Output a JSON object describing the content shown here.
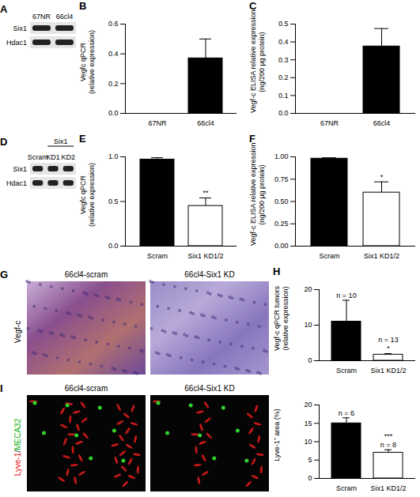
{
  "chart_data": [
    {
      "panel": "B",
      "type": "bar",
      "ylabel": "Vegfc qPCR\n(relative expression)",
      "categories": [
        "67NR",
        "66cl4"
      ],
      "values": [
        0,
        0.37
      ],
      "errors": [
        0,
        0.13
      ],
      "colors": [
        "#000000",
        "#000000"
      ],
      "ylim": [
        0,
        0.6
      ],
      "yticks": [
        {
          "value": 0,
          "label": "0.0"
        },
        {
          "value": 0.2,
          "label": "0.2"
        },
        {
          "value": 0.4,
          "label": "0.4"
        },
        {
          "value": 0.6,
          "label": "0.6"
        }
      ],
      "annotations": []
    },
    {
      "panel": "C",
      "type": "bar",
      "ylabel": "Vegf-c ELISA relative expression\n(ng/200 µg protein)",
      "categories": [
        "67NR",
        "66cl4"
      ],
      "values": [
        0,
        0.375
      ],
      "errors": [
        0,
        0.1
      ],
      "colors": [
        "#000000",
        "#000000"
      ],
      "ylim": [
        0,
        0.5
      ],
      "yticks": [
        {
          "value": 0,
          "label": "0.0"
        },
        {
          "value": 0.1,
          "label": "0.1"
        },
        {
          "value": 0.2,
          "label": "0.2"
        },
        {
          "value": 0.3,
          "label": "0.3"
        },
        {
          "value": 0.4,
          "label": "0.4"
        },
        {
          "value": 0.5,
          "label": "0.5"
        }
      ],
      "annotations": []
    },
    {
      "panel": "E",
      "type": "bar",
      "ylabel": "Vegfc qPCR\n(relative expression)",
      "categories": [
        "Scram",
        "Six1 KD1/2"
      ],
      "values": [
        0.97,
        0.45
      ],
      "errors": [
        0.02,
        0.09
      ],
      "colors": [
        "#000000",
        "#ffffff"
      ],
      "ylim": [
        0,
        1.0
      ],
      "yticks": [
        {
          "value": 0,
          "label": "0.0"
        },
        {
          "value": 0.5,
          "label": "0.5"
        },
        {
          "value": 1.0,
          "label": "1.0"
        }
      ],
      "annotations": [
        {
          "x": "Six1 KD1/2",
          "text": "**"
        }
      ]
    },
    {
      "panel": "F",
      "type": "bar",
      "ylabel": "Vegf-c ELISA relative expression\n(ng/200 µg protein)",
      "categories": [
        "Scram",
        "Six1 KD1/2"
      ],
      "values": [
        0.98,
        0.6
      ],
      "errors": [
        0.01,
        0.12
      ],
      "colors": [
        "#000000",
        "#ffffff"
      ],
      "ylim": [
        0,
        1.0
      ],
      "yticks": [
        {
          "value": 0,
          "label": "0.00"
        },
        {
          "value": 0.25,
          "label": "0.25"
        },
        {
          "value": 0.5,
          "label": "0.50"
        },
        {
          "value": 0.75,
          "label": "0.75"
        },
        {
          "value": 1.0,
          "label": "1.00"
        }
      ],
      "annotations": [
        {
          "x": "Six1 KD1/2",
          "text": "*"
        }
      ]
    },
    {
      "panel": "H",
      "type": "bar",
      "ylabel": "Vegf-c qPCR tumors\n(relative expression)",
      "categories": [
        "Scram",
        "Six1 KD1/2"
      ],
      "values": [
        11,
        1.7
      ],
      "errors": [
        6,
        0.3
      ],
      "colors": [
        "#000000",
        "#ffffff"
      ],
      "ylim": [
        0,
        20
      ],
      "yticks": [
        0,
        10,
        20
      ],
      "annotations": [
        {
          "x": "Scram",
          "text": "n = 10"
        },
        {
          "x": "Six1 KD1/2",
          "text": "*"
        },
        {
          "x": "Six1 KD1/2",
          "text": "n = 13"
        }
      ]
    },
    {
      "type": "bar",
      "ylabel": "Lyve-1⁺ area (%)",
      "categories": [
        "Scram",
        "Six1 KD1/2"
      ],
      "values": [
        15,
        7
      ],
      "errors": [
        1.5,
        0.8
      ],
      "colors": [
        "#000000",
        "#ffffff"
      ],
      "ylim": [
        0,
        20
      ],
      "yticks": [
        0,
        5,
        10,
        15,
        20
      ],
      "annotations": [
        {
          "x": "Scram",
          "text": "n = 6"
        },
        {
          "x": "Six1 KD1/2",
          "text": "n = 8"
        },
        {
          "x": "Six1 KD1/2",
          "text": "***"
        }
      ]
    }
  ],
  "panels": [
    {
      "panel": "A",
      "type": "western_blot",
      "lanes": [
        "67NR",
        "66cl4"
      ],
      "rows": [
        "Six1",
        "Hdac1"
      ]
    },
    {
      "panel": "D",
      "type": "western_blot",
      "lanes": [
        "Scram",
        "KD1",
        "KD2"
      ],
      "lane_group": {
        "label": "Six1",
        "lanes": [
          "KD1",
          "KD2"
        ]
      },
      "rows": [
        "Six1",
        "Hdac1"
      ]
    },
    {
      "panel": "G",
      "type": "micrograph_pair",
      "images": [
        "66cl4-scram",
        "66cl4-Six1 KD"
      ],
      "stain": [
        {
          "text": "Vegf-c",
          "color": "#000000"
        }
      ]
    },
    {
      "panel": "I",
      "type": "micrograph_pair",
      "images": [
        "66cl4-scram",
        "66cl4-Six1 KD"
      ],
      "stain": [
        {
          "text": "Lyve-1",
          "color": "#e02020"
        },
        {
          "text": "/",
          "color": "#000000"
        },
        {
          "text": "MECA32",
          "color": "#20b020"
        }
      ]
    }
  ]
}
